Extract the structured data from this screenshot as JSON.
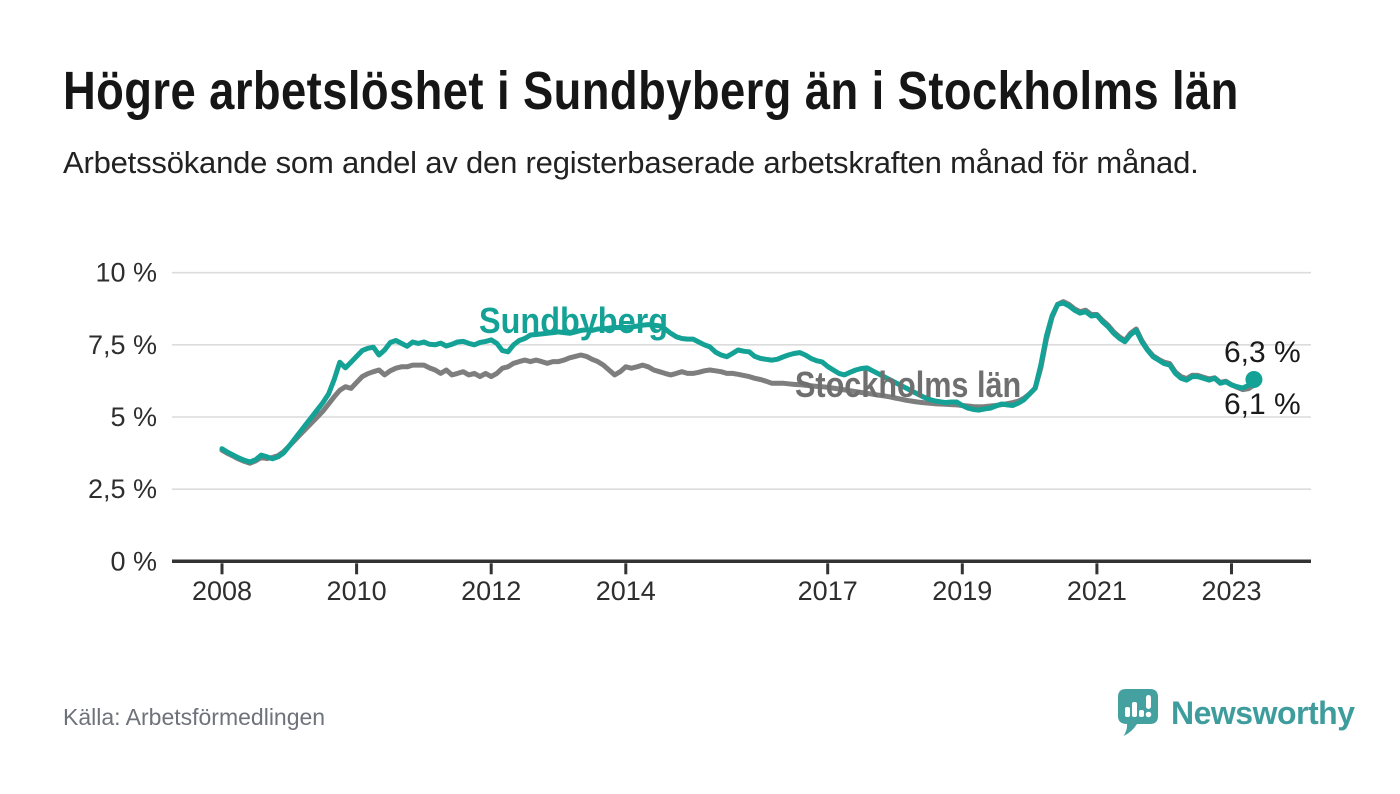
{
  "title": "Högre arbetslöshet i Sundbyberg än i Stockholms län",
  "subtitle": "Arbetssökande som andel av den registerbaserade arbetskraften månad för månad.",
  "source": "Källa: Arbetsförmedlingen",
  "logo": {
    "text": "Newsworthy",
    "icon": "newsworthy-speech-bubble-bar-chart-icon",
    "color": "#44a1a0"
  },
  "colors": {
    "sundbyberg_line": "#13a295",
    "stockholm_line": "#7e7e7e",
    "stockholm_label": "#6f6f6f",
    "grid": "#dcdcdc",
    "axis": "#333333",
    "axis_text": "#2e2e2e",
    "annotation_text": "#1a1a1a"
  },
  "chart_data": {
    "type": "line",
    "title": "Högre arbetslöshet i Sundbyberg än i Stockholms län",
    "subtitle": "Arbetssökande som andel av den registerbaserade arbetskraften månad för månad.",
    "xlabel": "",
    "ylabel": "",
    "unit": "%",
    "x_start_year": 2008,
    "x_start_month": 1,
    "x_step_months": 1,
    "x_end_year": 2023,
    "x_end_month": 5,
    "ylim": [
      0,
      10
    ],
    "grid": "horizontal-only",
    "legend_position": "inline-labels",
    "y_ticks": [
      {
        "value": 0,
        "label": "0 %"
      },
      {
        "value": 2.5,
        "label": "2,5 %"
      },
      {
        "value": 5,
        "label": "5 %"
      },
      {
        "value": 7.5,
        "label": "7,5 %"
      },
      {
        "value": 10,
        "label": "10 %"
      }
    ],
    "x_ticks": [
      {
        "value": 2008,
        "label": "2008"
      },
      {
        "value": 2010,
        "label": "2010"
      },
      {
        "value": 2012,
        "label": "2012"
      },
      {
        "value": 2014,
        "label": "2014"
      },
      {
        "value": 2017,
        "label": "2017"
      },
      {
        "value": 2019,
        "label": "2019"
      },
      {
        "value": 2021,
        "label": "2021"
      },
      {
        "value": 2023,
        "label": "2023"
      }
    ],
    "series": [
      {
        "name": "Sundbyberg",
        "color": "#13a295",
        "end_label": "6,3 %",
        "end_dot": true,
        "values": [
          3.9,
          3.78,
          3.68,
          3.58,
          3.5,
          3.44,
          3.52,
          3.68,
          3.62,
          3.55,
          3.62,
          3.76,
          4.0,
          4.25,
          4.5,
          4.75,
          5.0,
          5.25,
          5.5,
          5.8,
          6.3,
          6.9,
          6.7,
          6.9,
          7.1,
          7.3,
          7.38,
          7.42,
          7.15,
          7.32,
          7.58,
          7.65,
          7.55,
          7.45,
          7.6,
          7.55,
          7.6,
          7.52,
          7.5,
          7.56,
          7.46,
          7.52,
          7.6,
          7.62,
          7.55,
          7.5,
          7.58,
          7.62,
          7.67,
          7.55,
          7.3,
          7.26,
          7.5,
          7.65,
          7.72,
          7.84,
          7.86,
          7.88,
          7.9,
          7.92,
          7.95,
          7.92,
          7.9,
          7.95,
          8.0,
          8.02,
          8.0,
          8.05,
          8.05,
          8.08,
          8.1,
          8.1,
          8.1,
          8.12,
          8.15,
          8.18,
          8.2,
          8.18,
          8.16,
          8.05,
          7.9,
          7.78,
          7.72,
          7.7,
          7.7,
          7.6,
          7.5,
          7.43,
          7.25,
          7.15,
          7.09,
          7.2,
          7.32,
          7.28,
          7.26,
          7.1,
          7.03,
          7.0,
          6.97,
          7.0,
          7.08,
          7.15,
          7.2,
          7.23,
          7.15,
          7.03,
          6.95,
          6.91,
          6.75,
          6.63,
          6.51,
          6.46,
          6.55,
          6.63,
          6.68,
          6.7,
          6.6,
          6.5,
          6.4,
          6.3,
          6.2,
          6.1,
          6.0,
          5.9,
          5.8,
          5.7,
          5.62,
          5.56,
          5.53,
          5.5,
          5.52,
          5.52,
          5.4,
          5.31,
          5.26,
          5.24,
          5.28,
          5.31,
          5.38,
          5.45,
          5.42,
          5.4,
          5.48,
          5.6,
          5.8,
          6.0,
          6.8,
          7.8,
          8.5,
          8.9,
          8.95,
          8.85,
          8.7,
          8.6,
          8.65,
          8.5,
          8.53,
          8.3,
          8.13,
          7.9,
          7.73,
          7.61,
          7.85,
          8.0,
          7.61,
          7.32,
          7.09,
          6.97,
          6.85,
          6.8,
          6.51,
          6.34,
          6.28,
          6.4,
          6.4,
          6.34,
          6.28,
          6.34,
          6.17,
          6.22,
          6.11,
          6.05,
          6.0,
          6.1,
          6.3
        ]
      },
      {
        "name": "Stockholms län",
        "color": "#7e7e7e",
        "end_label": "6,1 %",
        "end_dot": false,
        "values": [
          3.85,
          3.74,
          3.64,
          3.54,
          3.46,
          3.4,
          3.48,
          3.6,
          3.56,
          3.6,
          3.66,
          3.8,
          4.0,
          4.2,
          4.4,
          4.6,
          4.8,
          5.0,
          5.2,
          5.45,
          5.7,
          5.93,
          6.05,
          5.99,
          6.2,
          6.4,
          6.5,
          6.57,
          6.63,
          6.46,
          6.6,
          6.69,
          6.74,
          6.74,
          6.8,
          6.8,
          6.8,
          6.7,
          6.63,
          6.51,
          6.63,
          6.46,
          6.51,
          6.57,
          6.46,
          6.51,
          6.4,
          6.51,
          6.4,
          6.51,
          6.69,
          6.74,
          6.86,
          6.92,
          6.97,
          6.92,
          6.97,
          6.92,
          6.86,
          6.92,
          6.92,
          6.97,
          7.05,
          7.1,
          7.15,
          7.1,
          7.0,
          6.92,
          6.8,
          6.63,
          6.46,
          6.57,
          6.74,
          6.69,
          6.74,
          6.8,
          6.74,
          6.63,
          6.57,
          6.51,
          6.46,
          6.51,
          6.57,
          6.51,
          6.51,
          6.55,
          6.6,
          6.63,
          6.6,
          6.57,
          6.51,
          6.51,
          6.48,
          6.44,
          6.4,
          6.34,
          6.3,
          6.24,
          6.17,
          6.17,
          6.17,
          6.15,
          6.13,
          6.12,
          6.1,
          6.08,
          6.06,
          6.05,
          6.03,
          6.0,
          5.97,
          5.94,
          5.91,
          5.88,
          5.85,
          5.82,
          5.79,
          5.76,
          5.73,
          5.7,
          5.66,
          5.62,
          5.58,
          5.55,
          5.52,
          5.5,
          5.48,
          5.46,
          5.45,
          5.44,
          5.43,
          5.42,
          5.4,
          5.38,
          5.36,
          5.35,
          5.36,
          5.38,
          5.4,
          5.43,
          5.46,
          5.5,
          5.55,
          5.65,
          5.8,
          6.0,
          6.7,
          7.7,
          8.45,
          8.9,
          9.0,
          8.9,
          8.75,
          8.65,
          8.7,
          8.55,
          8.55,
          8.35,
          8.18,
          7.95,
          7.78,
          7.65,
          7.9,
          8.05,
          7.65,
          7.35,
          7.12,
          7.0,
          6.9,
          6.85,
          6.56,
          6.4,
          6.33,
          6.45,
          6.44,
          6.38,
          6.32,
          6.36,
          6.2,
          6.24,
          6.12,
          6.03,
          5.95,
          5.98,
          6.1
        ]
      }
    ]
  }
}
